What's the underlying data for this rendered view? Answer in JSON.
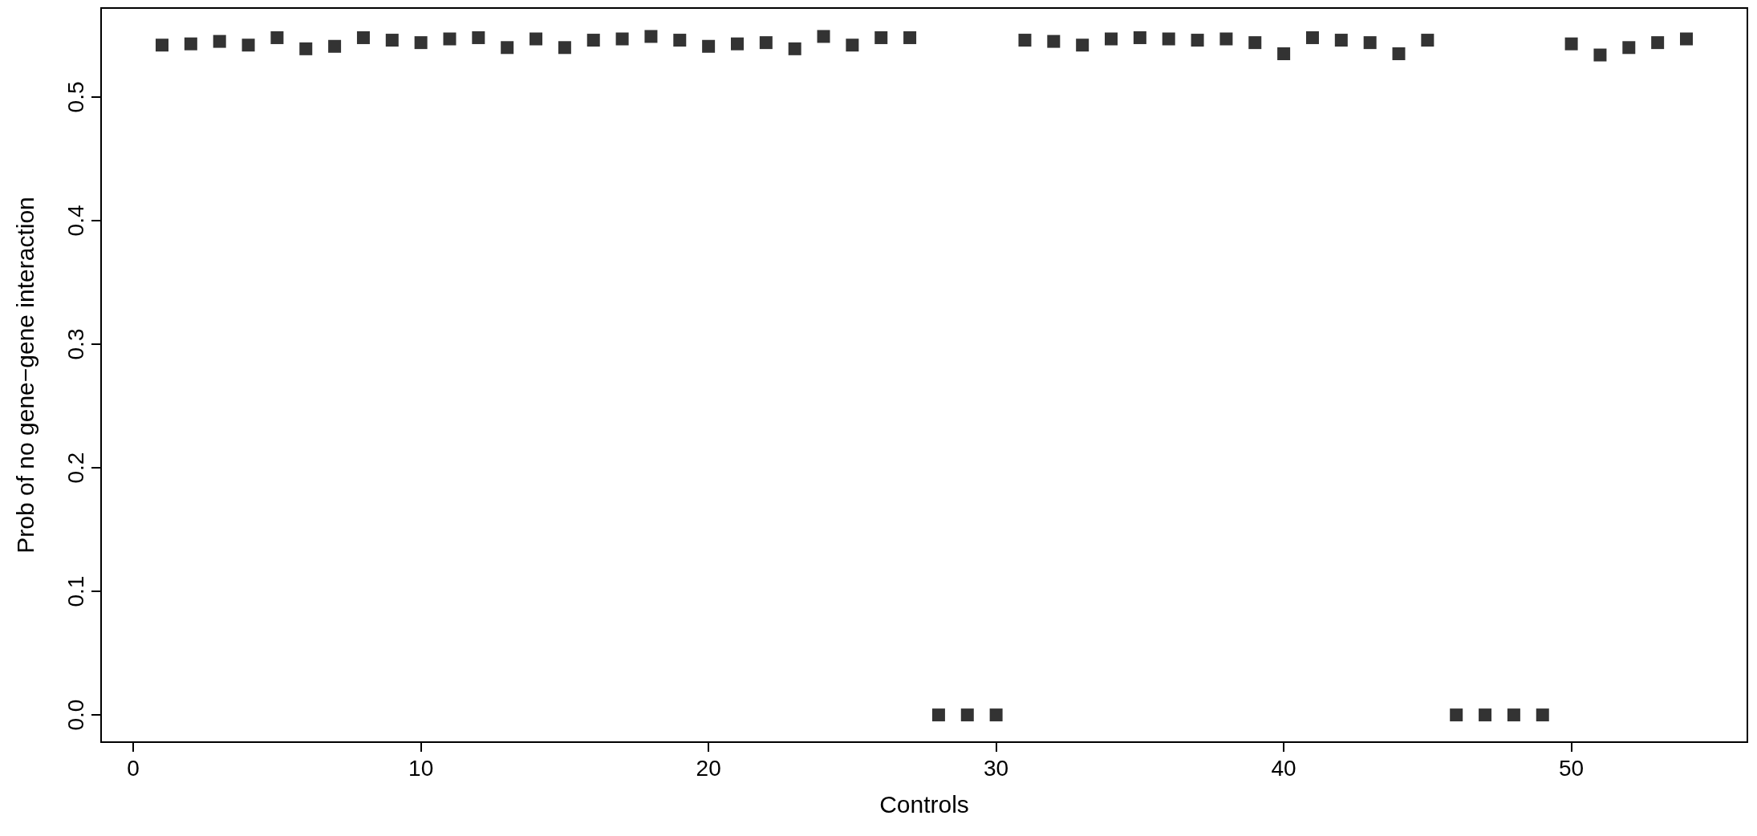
{
  "chart_data": {
    "type": "scatter",
    "xlabel": "Controls",
    "ylabel": "Prob of no gene−gene interaction",
    "x": [
      1,
      2,
      3,
      4,
      5,
      6,
      7,
      8,
      9,
      10,
      11,
      12,
      13,
      14,
      15,
      16,
      17,
      18,
      19,
      20,
      21,
      22,
      23,
      24,
      25,
      26,
      27,
      28,
      29,
      30,
      31,
      32,
      33,
      34,
      35,
      36,
      37,
      38,
      39,
      40,
      41,
      42,
      43,
      44,
      45,
      46,
      47,
      48,
      49,
      50,
      51,
      52,
      53,
      54
    ],
    "values": [
      0.542,
      0.543,
      0.545,
      0.542,
      0.548,
      0.539,
      0.541,
      0.548,
      0.546,
      0.544,
      0.547,
      0.548,
      0.54,
      0.547,
      0.54,
      0.546,
      0.547,
      0.549,
      0.546,
      0.541,
      0.543,
      0.544,
      0.539,
      0.549,
      0.542,
      0.548,
      0.548,
      0,
      0,
      0,
      0.546,
      0.545,
      0.542,
      0.547,
      0.548,
      0.547,
      0.546,
      0.547,
      0.544,
      0.535,
      0.548,
      0.546,
      0.544,
      0.535,
      0.546,
      0,
      0,
      0,
      0,
      0.543,
      0.534,
      0.54,
      0.544,
      0.547
    ],
    "color": "#000000",
    "marker": "square",
    "grid": false,
    "xlim": [
      -1.12,
      56.12
    ],
    "xticks": [
      0,
      10,
      20,
      30,
      40,
      50
    ],
    "ylim": [
      -0.022,
      0.572
    ],
    "yticks": [
      {
        "value": 0,
        "label": "0.0"
      },
      {
        "value": 0.1,
        "label": "0.1"
      },
      {
        "value": 0.2,
        "label": "0.2"
      },
      {
        "value": 0.3,
        "label": "0.3"
      },
      {
        "value": 0.4,
        "label": "0.4"
      },
      {
        "value": 0.5,
        "label": "0.5"
      }
    ]
  }
}
